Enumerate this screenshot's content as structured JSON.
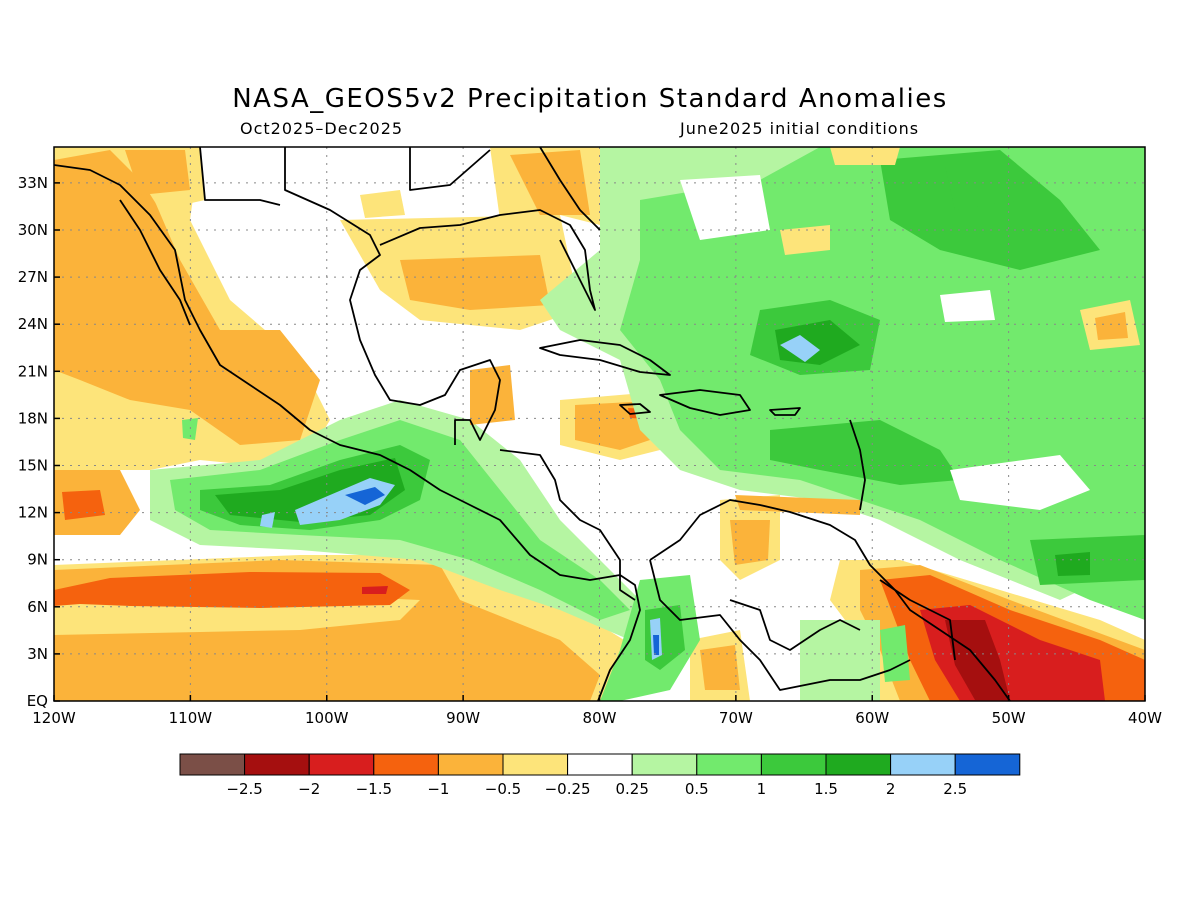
{
  "title": "NASA_GEOS5v2 Precipitation Standard Anomalies",
  "subtitle_left": "Oct2025–Dec2025",
  "subtitle_right": "June2025 initial conditions",
  "lat_labels": [
    "33N",
    "30N",
    "27N",
    "24N",
    "21N",
    "18N",
    "15N",
    "12N",
    "9N",
    "6N",
    "3N",
    "EQ"
  ],
  "lon_labels": [
    "120W",
    "110W",
    "100W",
    "90W",
    "80W",
    "70W",
    "60W",
    "50W",
    "40W"
  ],
  "colorbar": {
    "labels": [
      "−2.5",
      "−2",
      "−1.5",
      "−1",
      "−0.5",
      "−0.25",
      "0.25",
      "0.5",
      "1",
      "1.5",
      "2",
      "2.5"
    ],
    "colors": [
      "#7b4f47",
      "#a50f0f",
      "#d81e1e",
      "#f5620e",
      "#fbb33a",
      "#fde47a",
      "#ffffff",
      "#b5f5a2",
      "#72ea6d",
      "#3cc93c",
      "#1faa1f",
      "#97d1f8",
      "#1565d6"
    ]
  },
  "colors": {
    "dry_light": "#fde47a",
    "dry_mid": "#fbb33a",
    "dry_strong": "#f5620e",
    "dry_very": "#d81e1e",
    "dry_extreme": "#a50f0f",
    "wet_light": "#b5f5a2",
    "wet_mid": "#72ea6d",
    "wet_strong": "#3cc93c",
    "wet_very": "#1faa1f",
    "wet_extreme": "#97d1f8",
    "wet_max": "#1565d6"
  }
}
